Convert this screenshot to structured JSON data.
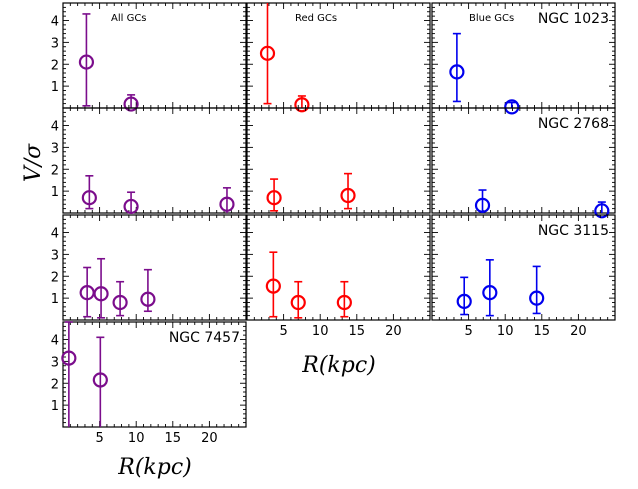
{
  "figure": {
    "ylabel": "V/σ",
    "xlabel": "R(kpc)"
  },
  "colors": {
    "all": "#7b0d8c",
    "red": "#ff0000",
    "blue": "#0000ee",
    "axis": "#000000"
  },
  "chart_data": [
    {
      "type": "scatter",
      "panel": "ngc1023-all",
      "row": 0,
      "col": 0,
      "title": "All GCs",
      "galaxy": "",
      "xlim": [
        0,
        25
      ],
      "ylim": [
        0,
        4.8
      ],
      "series": [
        {
          "color_key": "all",
          "points": [
            {
              "x": 3.2,
              "y": 2.1,
              "ylo": 0.1,
              "yhi": 4.3
            },
            {
              "x": 9.3,
              "y": 0.18,
              "ylo": 0.0,
              "yhi": 0.6
            }
          ]
        }
      ]
    },
    {
      "type": "scatter",
      "panel": "ngc1023-red",
      "row": 0,
      "col": 1,
      "title": "Red GCs",
      "galaxy": "",
      "xlim": [
        0,
        25
      ],
      "ylim": [
        0,
        4.8
      ],
      "series": [
        {
          "color_key": "red",
          "points": [
            {
              "x": 2.8,
              "y": 2.5,
              "ylo": 0.2,
              "yhi": 4.9
            },
            {
              "x": 7.5,
              "y": 0.15,
              "ylo": 0.0,
              "yhi": 0.55
            }
          ]
        }
      ]
    },
    {
      "type": "scatter",
      "panel": "ngc1023-blue",
      "row": 0,
      "col": 2,
      "title": "Blue GCs",
      "galaxy": "NGC 1023",
      "xlim": [
        0,
        25
      ],
      "ylim": [
        0,
        4.8
      ],
      "series": [
        {
          "color_key": "blue",
          "points": [
            {
              "x": 3.4,
              "y": 1.65,
              "ylo": 0.3,
              "yhi": 3.4
            },
            {
              "x": 10.9,
              "y": 0.05,
              "ylo": 0.0,
              "yhi": 0.25
            }
          ]
        }
      ]
    },
    {
      "type": "scatter",
      "panel": "ngc2768-all",
      "row": 1,
      "col": 0,
      "title": "",
      "galaxy": "",
      "xlim": [
        0,
        25
      ],
      "ylim": [
        0,
        4.8
      ],
      "series": [
        {
          "color_key": "all",
          "points": [
            {
              "x": 3.6,
              "y": 0.7,
              "ylo": 0.2,
              "yhi": 1.7
            },
            {
              "x": 9.3,
              "y": 0.3,
              "ylo": 0.0,
              "yhi": 0.95
            },
            {
              "x": 22.4,
              "y": 0.4,
              "ylo": 0.0,
              "yhi": 1.15
            }
          ]
        }
      ]
    },
    {
      "type": "scatter",
      "panel": "ngc2768-red",
      "row": 1,
      "col": 1,
      "title": "",
      "galaxy": "",
      "xlim": [
        0,
        25
      ],
      "ylim": [
        0,
        4.8
      ],
      "series": [
        {
          "color_key": "red",
          "points": [
            {
              "x": 3.7,
              "y": 0.7,
              "ylo": 0.1,
              "yhi": 1.55
            },
            {
              "x": 13.8,
              "y": 0.8,
              "ylo": 0.2,
              "yhi": 1.8
            }
          ]
        }
      ]
    },
    {
      "type": "scatter",
      "panel": "ngc2768-blue",
      "row": 1,
      "col": 2,
      "title": "",
      "galaxy": "NGC 2768",
      "xlim": [
        0,
        25
      ],
      "ylim": [
        0,
        4.8
      ],
      "series": [
        {
          "color_key": "blue",
          "points": [
            {
              "x": 6.9,
              "y": 0.35,
              "ylo": 0.0,
              "yhi": 1.05
            },
            {
              "x": 23.2,
              "y": 0.1,
              "ylo": 0.0,
              "yhi": 0.5
            }
          ]
        }
      ]
    },
    {
      "type": "scatter",
      "panel": "ngc3115-all",
      "row": 2,
      "col": 0,
      "title": "",
      "galaxy": "",
      "xlim": [
        0,
        25
      ],
      "ylim": [
        0,
        4.8
      ],
      "series": [
        {
          "color_key": "all",
          "points": [
            {
              "x": 3.3,
              "y": 1.25,
              "ylo": 0.15,
              "yhi": 2.4
            },
            {
              "x": 5.2,
              "y": 1.2,
              "ylo": 0.1,
              "yhi": 2.8
            },
            {
              "x": 7.8,
              "y": 0.8,
              "ylo": 0.2,
              "yhi": 1.75
            },
            {
              "x": 11.6,
              "y": 0.95,
              "ylo": 0.4,
              "yhi": 2.3
            }
          ]
        }
      ]
    },
    {
      "type": "scatter",
      "panel": "ngc3115-red",
      "row": 2,
      "col": 1,
      "title": "",
      "galaxy": "",
      "xlim": [
        0,
        25
      ],
      "ylim": [
        0,
        4.8
      ],
      "series": [
        {
          "color_key": "red",
          "points": [
            {
              "x": 3.6,
              "y": 1.55,
              "ylo": 0.15,
              "yhi": 3.1
            },
            {
              "x": 7.0,
              "y": 0.8,
              "ylo": 0.1,
              "yhi": 1.75
            },
            {
              "x": 13.3,
              "y": 0.8,
              "ylo": 0.15,
              "yhi": 1.75
            }
          ]
        }
      ]
    },
    {
      "type": "scatter",
      "panel": "ngc3115-blue",
      "row": 2,
      "col": 2,
      "title": "",
      "galaxy": "NGC 3115",
      "xlim": [
        0,
        25
      ],
      "ylim": [
        0,
        4.8
      ],
      "series": [
        {
          "color_key": "blue",
          "points": [
            {
              "x": 4.4,
              "y": 0.85,
              "ylo": 0.25,
              "yhi": 1.95
            },
            {
              "x": 7.9,
              "y": 1.25,
              "ylo": 0.2,
              "yhi": 2.75
            },
            {
              "x": 14.3,
              "y": 1.0,
              "ylo": 0.3,
              "yhi": 2.45
            }
          ]
        }
      ]
    },
    {
      "type": "scatter",
      "panel": "ngc7457-all",
      "row": 3,
      "col": 0,
      "title": "",
      "galaxy": "NGC 7457",
      "xlim": [
        0,
        25
      ],
      "ylim": [
        0,
        4.8
      ],
      "series": [
        {
          "color_key": "all",
          "points": [
            {
              "x": 0.8,
              "y": 3.15,
              "ylo": 0.0,
              "yhi": 4.8
            },
            {
              "x": 5.1,
              "y": 2.15,
              "ylo": 0.0,
              "yhi": 4.1
            }
          ]
        }
      ]
    }
  ],
  "ticks": {
    "y_major": [
      1,
      2,
      3,
      4
    ],
    "x_major": [
      5,
      10,
      15,
      20
    ],
    "minor_step": 0.2
  }
}
